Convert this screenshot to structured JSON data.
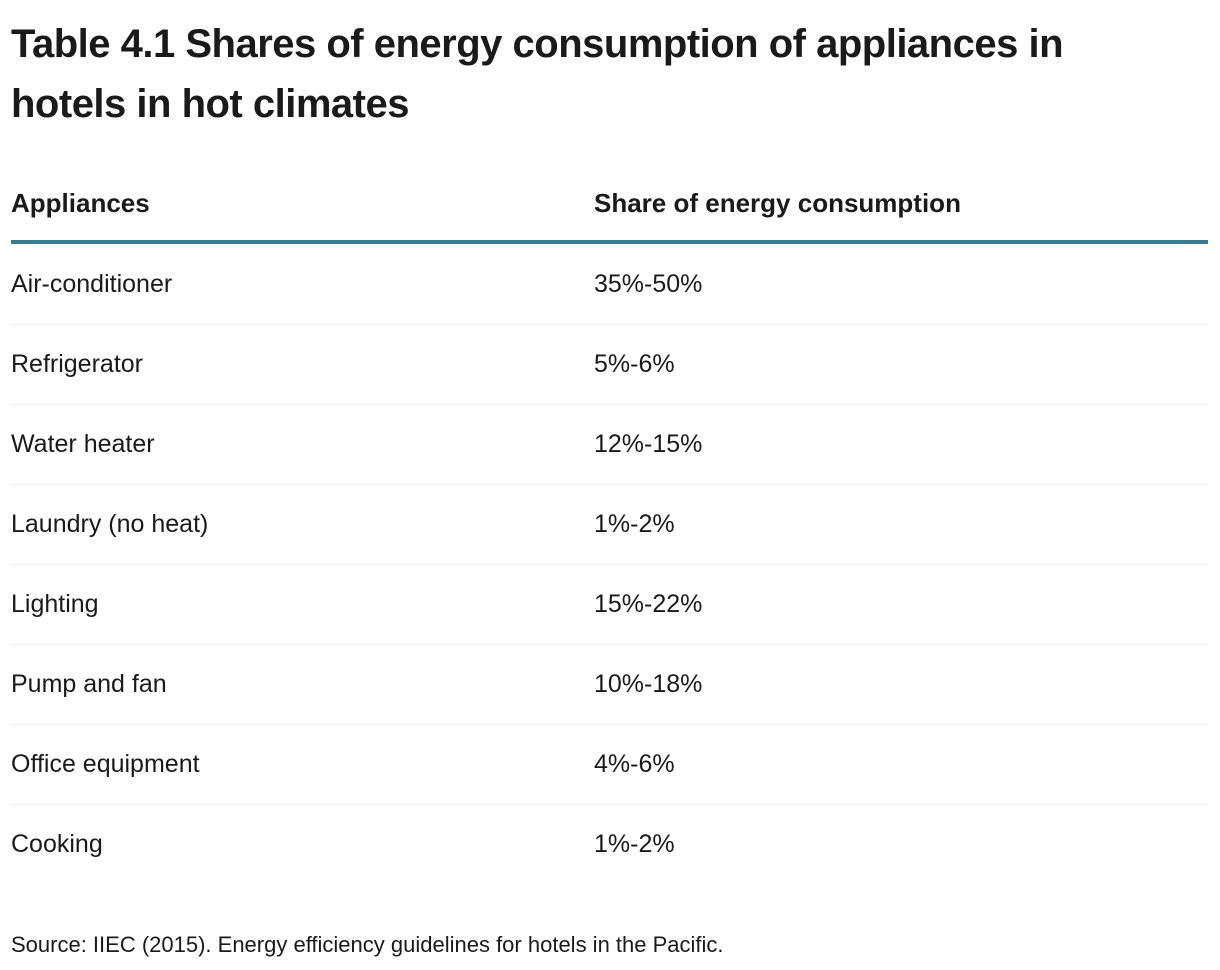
{
  "title": "Table 4.1 Shares of energy consumption of appliances in hotels in hot climates",
  "table": {
    "columns": [
      "Appliances",
      "Share of energy consumption"
    ],
    "rows": [
      {
        "appliance": "Air-conditioner",
        "share": "35%-50%"
      },
      {
        "appliance": "Refrigerator",
        "share": "5%-6%"
      },
      {
        "appliance": "Water heater",
        "share": "12%-15%"
      },
      {
        "appliance": "Laundry (no heat)",
        "share": "1%-2%"
      },
      {
        "appliance": "Lighting",
        "share": "15%-22%"
      },
      {
        "appliance": "Pump and fan",
        "share": "10%-18%"
      },
      {
        "appliance": "Office equipment",
        "share": "4%-6%"
      },
      {
        "appliance": "Cooking",
        "share": "1%-2%"
      }
    ]
  },
  "source": "Source: IIEC (2015). Energy efficiency guidelines for hotels in the Pacific.",
  "chart_data": {
    "type": "table",
    "title": "Table 4.1 Shares of energy consumption of appliances in hotels in hot climates",
    "columns": [
      "Appliances",
      "Share of energy consumption"
    ],
    "categories": [
      "Air-conditioner",
      "Refrigerator",
      "Water heater",
      "Laundry (no heat)",
      "Lighting",
      "Pump and fan",
      "Office equipment",
      "Cooking"
    ],
    "series": [
      {
        "name": "Share min %",
        "values": [
          35,
          5,
          12,
          1,
          15,
          10,
          4,
          1
        ]
      },
      {
        "name": "Share max %",
        "values": [
          50,
          6,
          15,
          2,
          22,
          18,
          6,
          2
        ]
      }
    ],
    "annotations": [
      "Source: IIEC (2015). Energy efficiency guidelines for hotels in the Pacific."
    ]
  },
  "colors": {
    "header_rule": "#3a7a93",
    "row_divider": "#ececec",
    "text": "#1a1a1a"
  }
}
